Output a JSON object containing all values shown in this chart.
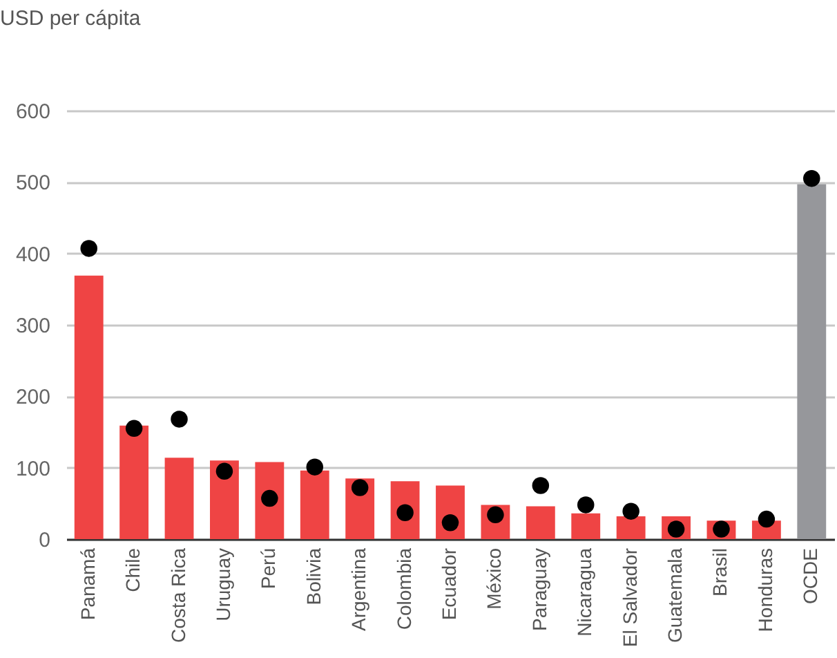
{
  "chart_data": {
    "type": "bar",
    "ylabel": "USD per cápita",
    "categories": [
      "Panamá",
      "Chile",
      "Costa Rica",
      "Uruguay",
      "Perú",
      "Bolivia",
      "Argentina",
      "Colombia",
      "Ecuador",
      "México",
      "Paraguay",
      "Nicaragua",
      "El Salvador",
      "Guatemala",
      "Brasil",
      "Honduras",
      "OCDE"
    ],
    "series": [
      {
        "values": [
          369,
          159,
          114,
          110,
          108,
          96,
          85,
          81,
          75,
          48,
          46,
          36,
          32,
          32,
          26,
          26,
          497
        ],
        "colors": [
          "#ef4444",
          "#ef4444",
          "#ef4444",
          "#ef4444",
          "#ef4444",
          "#ef4444",
          "#ef4444",
          "#ef4444",
          "#ef4444",
          "#ef4444",
          "#ef4444",
          "#ef4444",
          "#ef4444",
          "#ef4444",
          "#ef4444",
          "#ef4444",
          "#96979b"
        ]
      },
      {
        "type": "scatter",
        "color": "#000000",
        "x": [
          "Panamá",
          "Chile",
          "Costa Rica",
          "Uruguay",
          "Perú",
          "Bolivia",
          "Argentina",
          "Colombia",
          "Ecuador",
          "México",
          "Paraguay",
          "Nicaragua",
          "El Salvador",
          "Guatemala",
          "Brasil",
          "Honduras",
          "OCDE"
        ],
        "values": [
          407,
          155,
          168,
          95,
          57,
          101,
          72,
          37,
          23,
          34,
          75,
          48,
          39,
          14,
          14,
          28,
          505
        ]
      }
    ],
    "ylim": [
      0,
      600
    ],
    "yticks": [
      0,
      100,
      200,
      300,
      400,
      500,
      600
    ],
    "grid": "y",
    "marker": "circle"
  }
}
